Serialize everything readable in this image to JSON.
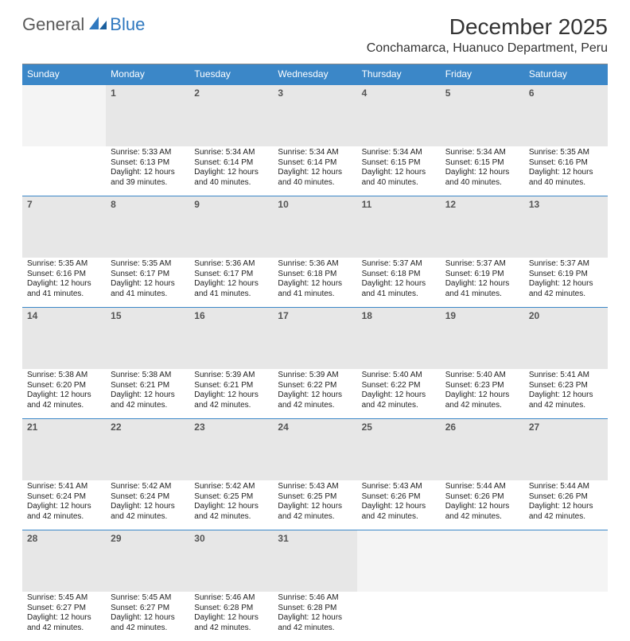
{
  "logo": {
    "part1": "General",
    "part2": "Blue"
  },
  "title": "December 2025",
  "location": "Conchamarca, Huanuco Department, Peru",
  "colors": {
    "header_bg": "#3b87c8",
    "header_text": "#ffffff",
    "daynum_bg": "#e7e7e7",
    "border": "#3b87c8"
  },
  "day_headers": [
    "Sunday",
    "Monday",
    "Tuesday",
    "Wednesday",
    "Thursday",
    "Friday",
    "Saturday"
  ],
  "weeks": [
    {
      "nums": [
        "",
        "1",
        "2",
        "3",
        "4",
        "5",
        "6"
      ],
      "cells": [
        null,
        {
          "sunrise": "Sunrise: 5:33 AM",
          "sunset": "Sunset: 6:13 PM",
          "day1": "Daylight: 12 hours",
          "day2": "and 39 minutes."
        },
        {
          "sunrise": "Sunrise: 5:34 AM",
          "sunset": "Sunset: 6:14 PM",
          "day1": "Daylight: 12 hours",
          "day2": "and 40 minutes."
        },
        {
          "sunrise": "Sunrise: 5:34 AM",
          "sunset": "Sunset: 6:14 PM",
          "day1": "Daylight: 12 hours",
          "day2": "and 40 minutes."
        },
        {
          "sunrise": "Sunrise: 5:34 AM",
          "sunset": "Sunset: 6:15 PM",
          "day1": "Daylight: 12 hours",
          "day2": "and 40 minutes."
        },
        {
          "sunrise": "Sunrise: 5:34 AM",
          "sunset": "Sunset: 6:15 PM",
          "day1": "Daylight: 12 hours",
          "day2": "and 40 minutes."
        },
        {
          "sunrise": "Sunrise: 5:35 AM",
          "sunset": "Sunset: 6:16 PM",
          "day1": "Daylight: 12 hours",
          "day2": "and 40 minutes."
        }
      ]
    },
    {
      "nums": [
        "7",
        "8",
        "9",
        "10",
        "11",
        "12",
        "13"
      ],
      "cells": [
        {
          "sunrise": "Sunrise: 5:35 AM",
          "sunset": "Sunset: 6:16 PM",
          "day1": "Daylight: 12 hours",
          "day2": "and 41 minutes."
        },
        {
          "sunrise": "Sunrise: 5:35 AM",
          "sunset": "Sunset: 6:17 PM",
          "day1": "Daylight: 12 hours",
          "day2": "and 41 minutes."
        },
        {
          "sunrise": "Sunrise: 5:36 AM",
          "sunset": "Sunset: 6:17 PM",
          "day1": "Daylight: 12 hours",
          "day2": "and 41 minutes."
        },
        {
          "sunrise": "Sunrise: 5:36 AM",
          "sunset": "Sunset: 6:18 PM",
          "day1": "Daylight: 12 hours",
          "day2": "and 41 minutes."
        },
        {
          "sunrise": "Sunrise: 5:37 AM",
          "sunset": "Sunset: 6:18 PM",
          "day1": "Daylight: 12 hours",
          "day2": "and 41 minutes."
        },
        {
          "sunrise": "Sunrise: 5:37 AM",
          "sunset": "Sunset: 6:19 PM",
          "day1": "Daylight: 12 hours",
          "day2": "and 41 minutes."
        },
        {
          "sunrise": "Sunrise: 5:37 AM",
          "sunset": "Sunset: 6:19 PM",
          "day1": "Daylight: 12 hours",
          "day2": "and 42 minutes."
        }
      ]
    },
    {
      "nums": [
        "14",
        "15",
        "16",
        "17",
        "18",
        "19",
        "20"
      ],
      "cells": [
        {
          "sunrise": "Sunrise: 5:38 AM",
          "sunset": "Sunset: 6:20 PM",
          "day1": "Daylight: 12 hours",
          "day2": "and 42 minutes."
        },
        {
          "sunrise": "Sunrise: 5:38 AM",
          "sunset": "Sunset: 6:21 PM",
          "day1": "Daylight: 12 hours",
          "day2": "and 42 minutes."
        },
        {
          "sunrise": "Sunrise: 5:39 AM",
          "sunset": "Sunset: 6:21 PM",
          "day1": "Daylight: 12 hours",
          "day2": "and 42 minutes."
        },
        {
          "sunrise": "Sunrise: 5:39 AM",
          "sunset": "Sunset: 6:22 PM",
          "day1": "Daylight: 12 hours",
          "day2": "and 42 minutes."
        },
        {
          "sunrise": "Sunrise: 5:40 AM",
          "sunset": "Sunset: 6:22 PM",
          "day1": "Daylight: 12 hours",
          "day2": "and 42 minutes."
        },
        {
          "sunrise": "Sunrise: 5:40 AM",
          "sunset": "Sunset: 6:23 PM",
          "day1": "Daylight: 12 hours",
          "day2": "and 42 minutes."
        },
        {
          "sunrise": "Sunrise: 5:41 AM",
          "sunset": "Sunset: 6:23 PM",
          "day1": "Daylight: 12 hours",
          "day2": "and 42 minutes."
        }
      ]
    },
    {
      "nums": [
        "21",
        "22",
        "23",
        "24",
        "25",
        "26",
        "27"
      ],
      "cells": [
        {
          "sunrise": "Sunrise: 5:41 AM",
          "sunset": "Sunset: 6:24 PM",
          "day1": "Daylight: 12 hours",
          "day2": "and 42 minutes."
        },
        {
          "sunrise": "Sunrise: 5:42 AM",
          "sunset": "Sunset: 6:24 PM",
          "day1": "Daylight: 12 hours",
          "day2": "and 42 minutes."
        },
        {
          "sunrise": "Sunrise: 5:42 AM",
          "sunset": "Sunset: 6:25 PM",
          "day1": "Daylight: 12 hours",
          "day2": "and 42 minutes."
        },
        {
          "sunrise": "Sunrise: 5:43 AM",
          "sunset": "Sunset: 6:25 PM",
          "day1": "Daylight: 12 hours",
          "day2": "and 42 minutes."
        },
        {
          "sunrise": "Sunrise: 5:43 AM",
          "sunset": "Sunset: 6:26 PM",
          "day1": "Daylight: 12 hours",
          "day2": "and 42 minutes."
        },
        {
          "sunrise": "Sunrise: 5:44 AM",
          "sunset": "Sunset: 6:26 PM",
          "day1": "Daylight: 12 hours",
          "day2": "and 42 minutes."
        },
        {
          "sunrise": "Sunrise: 5:44 AM",
          "sunset": "Sunset: 6:26 PM",
          "day1": "Daylight: 12 hours",
          "day2": "and 42 minutes."
        }
      ]
    },
    {
      "nums": [
        "28",
        "29",
        "30",
        "31",
        "",
        "",
        ""
      ],
      "cells": [
        {
          "sunrise": "Sunrise: 5:45 AM",
          "sunset": "Sunset: 6:27 PM",
          "day1": "Daylight: 12 hours",
          "day2": "and 42 minutes."
        },
        {
          "sunrise": "Sunrise: 5:45 AM",
          "sunset": "Sunset: 6:27 PM",
          "day1": "Daylight: 12 hours",
          "day2": "and 42 minutes."
        },
        {
          "sunrise": "Sunrise: 5:46 AM",
          "sunset": "Sunset: 6:28 PM",
          "day1": "Daylight: 12 hours",
          "day2": "and 42 minutes."
        },
        {
          "sunrise": "Sunrise: 5:46 AM",
          "sunset": "Sunset: 6:28 PM",
          "day1": "Daylight: 12 hours",
          "day2": "and 42 minutes."
        },
        null,
        null,
        null
      ]
    }
  ]
}
